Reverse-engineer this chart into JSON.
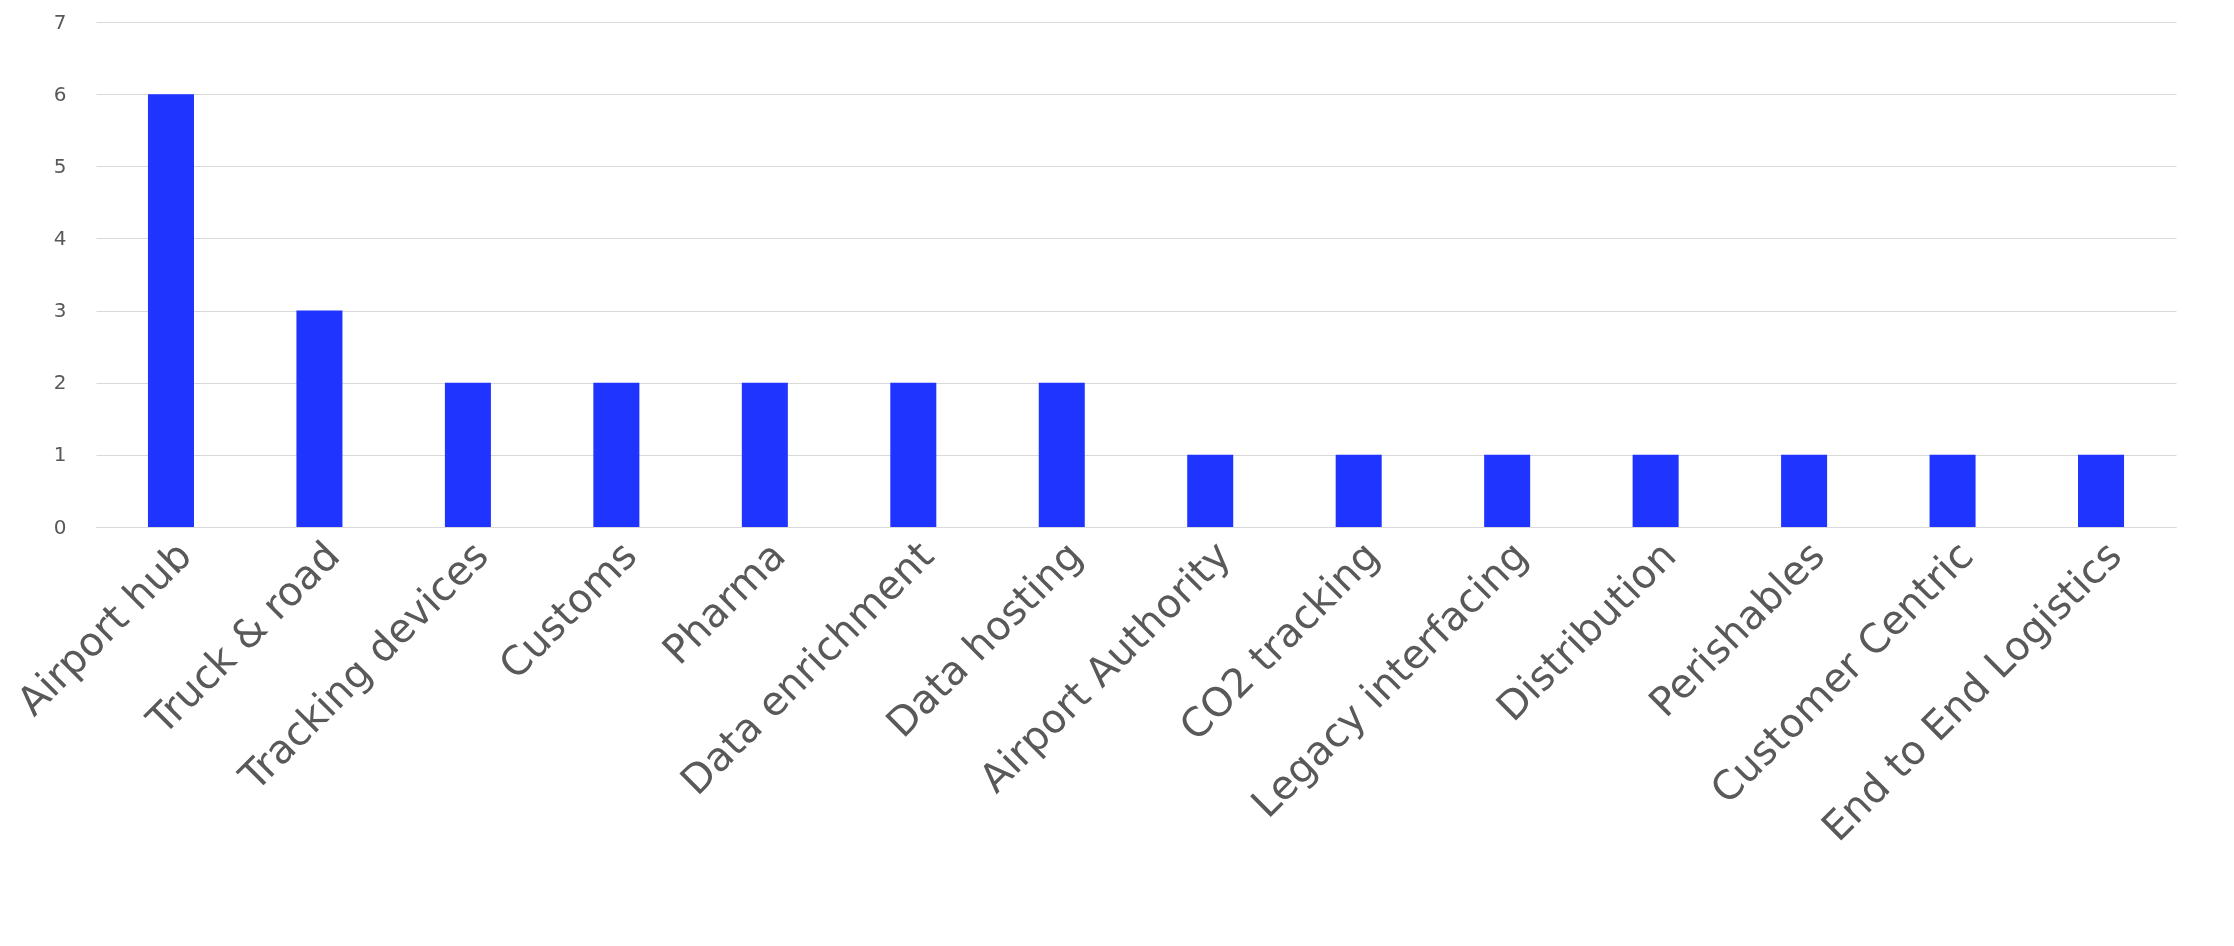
{
  "chart_data": {
    "type": "bar",
    "categories": [
      "Airport hub",
      "Truck & road",
      "Tracking devices",
      "Customs",
      "Pharma",
      "Data enrichment",
      "Data hosting",
      "Airport Authority",
      "CO2 tracking",
      "Legacy interfacing",
      "Distribution",
      "Perishables",
      "Customer Centric",
      "End to End Logistics"
    ],
    "values": [
      6,
      3,
      2,
      2,
      2,
      2,
      2,
      1,
      1,
      1,
      1,
      1,
      1,
      1
    ],
    "color": "#1f35ff",
    "ylim": [
      0,
      7
    ],
    "yticks": [
      0,
      1,
      2,
      3,
      4,
      5,
      6,
      7
    ],
    "grid": "y"
  }
}
